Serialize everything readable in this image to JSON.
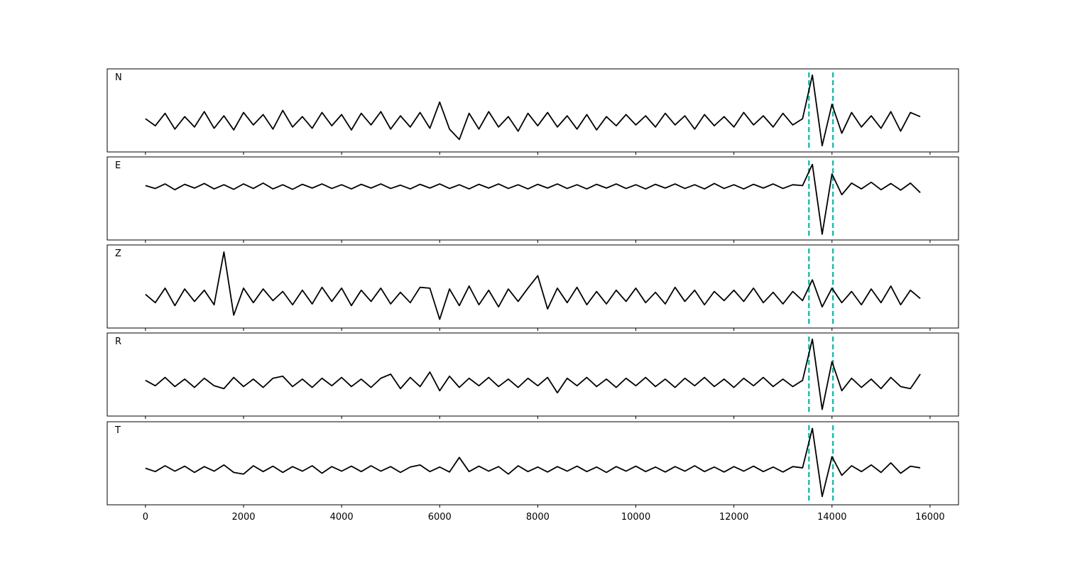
{
  "chart_data": [
    {
      "type": "line",
      "label": "N",
      "color": "#000000",
      "vline_color": "#17c0b0",
      "vlines": [
        13530,
        14020
      ],
      "xlim": [
        -780,
        16580
      ],
      "ylim": [
        -0.75,
        1.25
      ],
      "x": [
        0,
        200,
        400,
        600,
        800,
        1000,
        1200,
        1400,
        1600,
        1800,
        2000,
        2200,
        2400,
        2600,
        2800,
        3000,
        3200,
        3400,
        3600,
        3800,
        4000,
        4200,
        4400,
        4600,
        4800,
        5000,
        5200,
        5400,
        5600,
        5800,
        6000,
        6200,
        6400,
        6600,
        6800,
        7000,
        7200,
        7400,
        7600,
        7800,
        8000,
        8200,
        8400,
        8600,
        8800,
        9000,
        9200,
        9400,
        9600,
        9800,
        10000,
        10200,
        10400,
        10600,
        10800,
        11000,
        11200,
        11400,
        11600,
        11800,
        12000,
        12200,
        12400,
        12600,
        12800,
        13000,
        13200,
        13400,
        13600,
        13800,
        14000,
        14200,
        14400,
        14600,
        14800,
        15000,
        15200,
        15400,
        15600,
        15800
      ],
      "values": [
        0.05,
        -0.12,
        0.18,
        -0.2,
        0.1,
        -0.15,
        0.22,
        -0.18,
        0.12,
        -0.22,
        0.2,
        -0.1,
        0.15,
        -0.2,
        0.25,
        -0.15,
        0.1,
        -0.18,
        0.2,
        -0.12,
        0.15,
        -0.22,
        0.18,
        -0.1,
        0.22,
        -0.2,
        0.12,
        -0.15,
        0.2,
        -0.18,
        0.45,
        -0.2,
        -0.45,
        0.18,
        -0.2,
        0.22,
        -0.15,
        0.1,
        -0.25,
        0.18,
        -0.12,
        0.2,
        -0.15,
        0.12,
        -0.2,
        0.15,
        -0.22,
        0.1,
        -0.12,
        0.15,
        -0.1,
        0.12,
        -0.15,
        0.18,
        -0.1,
        0.12,
        -0.2,
        0.15,
        -0.12,
        0.1,
        -0.15,
        0.2,
        -0.1,
        0.12,
        -0.15,
        0.18,
        -0.1,
        0.05,
        1.1,
        -0.6,
        0.4,
        -0.3,
        0.2,
        -0.15,
        0.12,
        -0.18,
        0.22,
        -0.25,
        0.2,
        0.1
      ]
    },
    {
      "type": "line",
      "label": "E",
      "color": "#000000",
      "vline_color": "#17c0b0",
      "vlines": [
        13530,
        14020
      ],
      "xlim": [
        -780,
        16580
      ],
      "ylim": [
        -1.29,
        0.71
      ],
      "x": [
        0,
        200,
        400,
        600,
        800,
        1000,
        1200,
        1400,
        1600,
        1800,
        2000,
        2200,
        2400,
        2600,
        2800,
        3000,
        3200,
        3400,
        3600,
        3800,
        4000,
        4200,
        4400,
        4600,
        4800,
        5000,
        5200,
        5400,
        5600,
        5800,
        6000,
        6200,
        6400,
        6600,
        6800,
        7000,
        7200,
        7400,
        7600,
        7800,
        8000,
        8200,
        8400,
        8600,
        8800,
        9000,
        9200,
        9400,
        9600,
        9800,
        10000,
        10200,
        10400,
        10600,
        10800,
        11000,
        11200,
        11400,
        11600,
        11800,
        12000,
        12200,
        12400,
        12600,
        12800,
        13000,
        13200,
        13400,
        13600,
        13800,
        14000,
        14200,
        14400,
        14600,
        14800,
        15000,
        15200,
        15400,
        15600,
        15800
      ],
      "values": [
        0.02,
        -0.05,
        0.06,
        -0.08,
        0.05,
        -0.04,
        0.07,
        -0.06,
        0.04,
        -0.07,
        0.06,
        -0.05,
        0.08,
        -0.06,
        0.04,
        -0.07,
        0.05,
        -0.04,
        0.06,
        -0.05,
        0.04,
        -0.06,
        0.05,
        -0.04,
        0.06,
        -0.05,
        0.03,
        -0.06,
        0.05,
        -0.04,
        0.06,
        -0.05,
        0.04,
        -0.06,
        0.05,
        -0.04,
        0.06,
        -0.05,
        0.04,
        -0.06,
        0.05,
        -0.04,
        0.06,
        -0.05,
        0.04,
        -0.06,
        0.05,
        -0.04,
        0.06,
        -0.05,
        0.04,
        -0.06,
        0.05,
        -0.04,
        0.06,
        -0.05,
        0.04,
        -0.06,
        0.07,
        -0.05,
        0.04,
        -0.06,
        0.05,
        -0.04,
        0.06,
        -0.05,
        0.04,
        0.02,
        0.53,
        -1.15,
        0.3,
        -0.2,
        0.08,
        -0.06,
        0.1,
        -0.08,
        0.07,
        -0.09,
        0.08,
        -0.15
      ]
    },
    {
      "type": "line",
      "label": "Z",
      "color": "#000000",
      "vline_color": "#17c0b0",
      "vlines": [
        13530,
        14020
      ],
      "xlim": [
        -780,
        16580
      ],
      "ylim": [
        -0.76,
        1.24
      ],
      "x": [
        0,
        200,
        400,
        600,
        800,
        1000,
        1200,
        1400,
        1600,
        1800,
        2000,
        2200,
        2400,
        2600,
        2800,
        3000,
        3200,
        3400,
        3600,
        3800,
        4000,
        4200,
        4400,
        4600,
        4800,
        5000,
        5200,
        5400,
        5600,
        5800,
        6000,
        6200,
        6400,
        6600,
        6800,
        7000,
        7200,
        7400,
        7600,
        7800,
        8000,
        8200,
        8400,
        8600,
        8800,
        9000,
        9200,
        9400,
        9600,
        9800,
        10000,
        10200,
        10400,
        10600,
        10800,
        11000,
        11200,
        11400,
        11600,
        11800,
        12000,
        12200,
        12400,
        12600,
        12800,
        13000,
        13200,
        13400,
        13600,
        13800,
        14000,
        14200,
        14400,
        14600,
        14800,
        15000,
        15200,
        15400,
        15600,
        15800
      ],
      "values": [
        0.05,
        -0.15,
        0.2,
        -0.22,
        0.18,
        -0.12,
        0.15,
        -0.2,
        1.07,
        -0.45,
        0.2,
        -0.15,
        0.18,
        -0.1,
        0.12,
        -0.2,
        0.15,
        -0.18,
        0.22,
        -0.12,
        0.2,
        -0.22,
        0.15,
        -0.12,
        0.2,
        -0.18,
        0.1,
        -0.15,
        0.22,
        0.2,
        -0.55,
        0.18,
        -0.22,
        0.25,
        -0.2,
        0.15,
        -0.25,
        0.18,
        -0.12,
        0.2,
        0.5,
        -0.3,
        0.2,
        -0.15,
        0.22,
        -0.2,
        0.12,
        -0.18,
        0.15,
        -0.12,
        0.2,
        -0.15,
        0.1,
        -0.18,
        0.22,
        -0.12,
        0.15,
        -0.2,
        0.12,
        -0.1,
        0.15,
        -0.12,
        0.2,
        -0.15,
        0.1,
        -0.18,
        0.12,
        -0.1,
        0.4,
        -0.25,
        0.2,
        -0.15,
        0.12,
        -0.2,
        0.18,
        -0.15,
        0.25,
        -0.2,
        0.15,
        -0.05
      ]
    },
    {
      "type": "line",
      "label": "R",
      "color": "#000000",
      "vline_color": "#17c0b0",
      "vlines": [
        13530,
        14020
      ],
      "xlim": [
        -780,
        16580
      ],
      "ylim": [
        -0.81,
        1.19
      ],
      "x": [
        0,
        200,
        400,
        600,
        800,
        1000,
        1200,
        1400,
        1600,
        1800,
        2000,
        2200,
        2400,
        2600,
        2800,
        3000,
        3200,
        3400,
        3600,
        3800,
        4000,
        4200,
        4400,
        4600,
        4800,
        5000,
        5200,
        5400,
        5600,
        5800,
        6000,
        6200,
        6400,
        6600,
        6800,
        7000,
        7200,
        7400,
        7600,
        7800,
        8000,
        8200,
        8400,
        8600,
        8800,
        9000,
        9200,
        9400,
        9600,
        9800,
        10000,
        10200,
        10400,
        10600,
        10800,
        11000,
        11200,
        11400,
        11600,
        11800,
        12000,
        12200,
        12400,
        12600,
        12800,
        13000,
        13200,
        13400,
        13600,
        13800,
        14000,
        14200,
        14400,
        14600,
        14800,
        15000,
        15200,
        15400,
        15600,
        15800
      ],
      "values": [
        0.05,
        -0.08,
        0.12,
        -0.1,
        0.08,
        -0.12,
        0.1,
        -0.08,
        -0.15,
        0.12,
        -0.1,
        0.08,
        -0.12,
        0.1,
        0.15,
        -0.1,
        0.08,
        -0.12,
        0.1,
        -0.08,
        0.12,
        -0.1,
        0.08,
        -0.12,
        0.1,
        0.2,
        -0.15,
        0.12,
        -0.1,
        0.25,
        -0.2,
        0.15,
        -0.12,
        0.1,
        -0.08,
        0.12,
        -0.1,
        0.08,
        -0.12,
        0.1,
        -0.08,
        0.12,
        -0.25,
        0.1,
        -0.08,
        0.12,
        -0.1,
        0.08,
        -0.12,
        0.1,
        -0.08,
        0.12,
        -0.1,
        0.08,
        -0.12,
        0.1,
        -0.08,
        0.12,
        -0.1,
        0.08,
        -0.12,
        0.1,
        -0.08,
        0.12,
        -0.1,
        0.08,
        -0.1,
        0.05,
        1.04,
        -0.65,
        0.5,
        -0.2,
        0.1,
        -0.12,
        0.08,
        -0.15,
        0.12,
        -0.1,
        -0.15,
        0.2
      ]
    },
    {
      "type": "line",
      "label": "T",
      "color": "#000000",
      "vline_color": "#17c0b0",
      "vlines": [
        13530,
        14020
      ],
      "xlim": [
        -780,
        16580
      ],
      "ylim": [
        -0.86,
        1.14
      ],
      "xticks": [
        0,
        2000,
        4000,
        6000,
        8000,
        10000,
        12000,
        14000,
        16000
      ],
      "x": [
        0,
        200,
        400,
        600,
        800,
        1000,
        1200,
        1400,
        1600,
        1800,
        2000,
        2200,
        2400,
        2600,
        2800,
        3000,
        3200,
        3400,
        3600,
        3800,
        4000,
        4200,
        4400,
        4600,
        4800,
        5000,
        5200,
        5400,
        5600,
        5800,
        6000,
        6200,
        6400,
        6600,
        6800,
        7000,
        7200,
        7400,
        7600,
        7800,
        8000,
        8200,
        8400,
        8600,
        8800,
        9000,
        9200,
        9400,
        9600,
        9800,
        10000,
        10200,
        10400,
        10600,
        10800,
        11000,
        11200,
        11400,
        11600,
        11800,
        12000,
        12200,
        12400,
        12600,
        12800,
        13000,
        13200,
        13400,
        13600,
        13800,
        14000,
        14200,
        14400,
        14600,
        14800,
        15000,
        15200,
        15400,
        15600,
        15800
      ],
      "values": [
        0.02,
        -0.06,
        0.08,
        -0.05,
        0.07,
        -0.08,
        0.06,
        -0.05,
        0.1,
        -0.08,
        -0.12,
        0.08,
        -0.06,
        0.07,
        -0.08,
        0.06,
        -0.05,
        0.08,
        -0.1,
        0.06,
        -0.05,
        0.07,
        -0.06,
        0.08,
        -0.05,
        0.06,
        -0.08,
        0.05,
        0.1,
        -0.06,
        0.05,
        -0.07,
        0.28,
        -0.06,
        0.07,
        -0.05,
        0.06,
        -0.12,
        0.08,
        -0.06,
        0.05,
        -0.07,
        0.06,
        -0.05,
        0.07,
        -0.06,
        0.05,
        -0.08,
        0.06,
        -0.05,
        0.07,
        -0.06,
        0.05,
        -0.07,
        0.06,
        -0.05,
        0.08,
        -0.06,
        0.05,
        -0.07,
        0.06,
        -0.05,
        0.07,
        -0.06,
        0.05,
        -0.07,
        0.06,
        0.03,
        0.98,
        -0.66,
        0.3,
        -0.15,
        0.08,
        -0.06,
        0.1,
        -0.08,
        0.15,
        -0.1,
        0.07,
        0.03
      ]
    }
  ]
}
